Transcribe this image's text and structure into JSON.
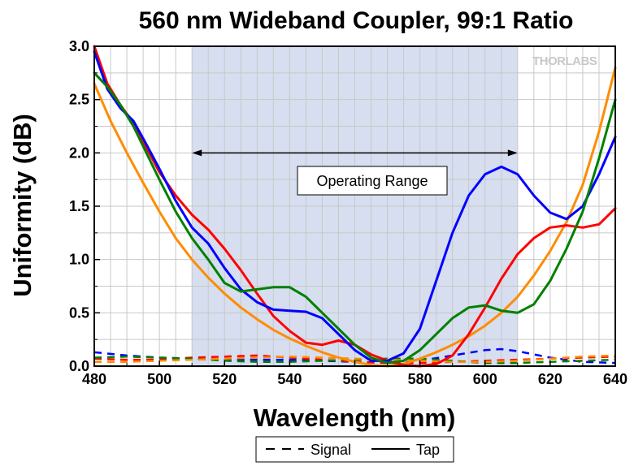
{
  "chart_data": {
    "type": "line",
    "title": "560 nm Wideband Coupler, 99:1 Ratio",
    "xlabel": "Wavelength (nm)",
    "ylabel": "Uniformity (dB)",
    "xlim": [
      480,
      640
    ],
    "ylim": [
      0,
      3.0
    ],
    "x_ticks": [
      "480",
      "500",
      "520",
      "540",
      "560",
      "580",
      "600",
      "620",
      "640"
    ],
    "y_ticks": [
      "0.0",
      "0.5",
      "1.0",
      "1.5",
      "2.0",
      "2.5",
      "3.0"
    ],
    "grid": true,
    "shaded_region": [
      510,
      610
    ],
    "range_arrow": {
      "x": [
        510,
        610
      ],
      "y": 2.0
    },
    "annotation": "Operating Range",
    "legend": {
      "placement": "bottom-center",
      "entries": [
        {
          "label": "Signal",
          "style": "dashed"
        },
        {
          "label": "Tap",
          "style": "solid"
        }
      ]
    },
    "logo": "THORLABS",
    "series": [
      {
        "style": "solid",
        "color": "#0000ff",
        "x": [
          480,
          484,
          488,
          492,
          496,
          500,
          505,
          510,
          515,
          520,
          525,
          530,
          535,
          540,
          545,
          550,
          555,
          560,
          565,
          570,
          575,
          580,
          585,
          590,
          595,
          600,
          605,
          610,
          615,
          620,
          625,
          630,
          635,
          640
        ],
        "y": [
          2.95,
          2.6,
          2.42,
          2.3,
          2.08,
          1.85,
          1.55,
          1.3,
          1.15,
          0.92,
          0.72,
          0.6,
          0.53,
          0.52,
          0.51,
          0.45,
          0.3,
          0.15,
          0.05,
          0.05,
          0.12,
          0.35,
          0.8,
          1.25,
          1.6,
          1.8,
          1.87,
          1.8,
          1.6,
          1.44,
          1.38,
          1.5,
          1.8,
          2.15
        ]
      },
      {
        "style": "solid",
        "color": "#ff0000",
        "x": [
          480,
          484,
          488,
          492,
          496,
          500,
          505,
          510,
          515,
          520,
          525,
          530,
          535,
          540,
          545,
          550,
          555,
          560,
          565,
          570,
          575,
          580,
          585,
          590,
          595,
          600,
          605,
          610,
          615,
          620,
          625,
          630,
          635,
          640
        ],
        "y": [
          3.0,
          2.65,
          2.45,
          2.28,
          2.05,
          1.82,
          1.6,
          1.42,
          1.28,
          1.1,
          0.9,
          0.68,
          0.47,
          0.33,
          0.22,
          0.2,
          0.24,
          0.2,
          0.11,
          0.05,
          0.01,
          0.0,
          0.02,
          0.1,
          0.3,
          0.55,
          0.82,
          1.05,
          1.2,
          1.3,
          1.32,
          1.3,
          1.33,
          1.48
        ]
      },
      {
        "style": "solid",
        "color": "#008000",
        "x": [
          480,
          484,
          488,
          492,
          496,
          500,
          505,
          510,
          515,
          520,
          525,
          530,
          535,
          540,
          545,
          550,
          555,
          560,
          565,
          570,
          575,
          580,
          585,
          590,
          595,
          600,
          605,
          610,
          615,
          620,
          625,
          630,
          635,
          640
        ],
        "y": [
          2.75,
          2.62,
          2.45,
          2.25,
          2.0,
          1.75,
          1.45,
          1.2,
          1.0,
          0.78,
          0.7,
          0.72,
          0.74,
          0.74,
          0.65,
          0.5,
          0.35,
          0.2,
          0.08,
          0.03,
          0.05,
          0.15,
          0.3,
          0.45,
          0.55,
          0.57,
          0.52,
          0.5,
          0.58,
          0.8,
          1.1,
          1.45,
          1.95,
          2.5
        ]
      },
      {
        "style": "solid",
        "color": "#ff8c00",
        "x": [
          480,
          485,
          490,
          495,
          500,
          505,
          510,
          515,
          520,
          525,
          530,
          535,
          540,
          545,
          550,
          555,
          560,
          565,
          570,
          575,
          580,
          585,
          590,
          595,
          600,
          605,
          610,
          615,
          620,
          625,
          630,
          635,
          640
        ],
        "y": [
          2.65,
          2.3,
          2.0,
          1.72,
          1.45,
          1.2,
          1.0,
          0.83,
          0.68,
          0.55,
          0.44,
          0.34,
          0.26,
          0.19,
          0.13,
          0.08,
          0.04,
          0.01,
          0.0,
          0.02,
          0.07,
          0.13,
          0.2,
          0.28,
          0.38,
          0.5,
          0.65,
          0.85,
          1.08,
          1.35,
          1.7,
          2.2,
          2.8
        ]
      },
      {
        "style": "dashed",
        "color": "#0000ff",
        "x": [
          480,
          490,
          500,
          510,
          520,
          530,
          540,
          550,
          560,
          570,
          580,
          590,
          600,
          605,
          610,
          620,
          630,
          640
        ],
        "y": [
          0.13,
          0.1,
          0.08,
          0.07,
          0.06,
          0.06,
          0.06,
          0.05,
          0.04,
          0.03,
          0.05,
          0.1,
          0.15,
          0.16,
          0.14,
          0.08,
          0.04,
          0.03
        ]
      },
      {
        "style": "dashed",
        "color": "#ff0000",
        "x": [
          480,
          490,
          500,
          510,
          520,
          530,
          540,
          550,
          560,
          570,
          580,
          590,
          600,
          610,
          620,
          630,
          640
        ],
        "y": [
          0.07,
          0.06,
          0.06,
          0.08,
          0.09,
          0.1,
          0.08,
          0.06,
          0.04,
          0.03,
          0.03,
          0.04,
          0.05,
          0.06,
          0.07,
          0.08,
          0.09
        ]
      },
      {
        "style": "dashed",
        "color": "#008000",
        "x": [
          480,
          490,
          500,
          510,
          520,
          530,
          540,
          550,
          560,
          570,
          580,
          590,
          600,
          610,
          620,
          630,
          640
        ],
        "y": [
          0.08,
          0.09,
          0.08,
          0.07,
          0.05,
          0.04,
          0.04,
          0.05,
          0.06,
          0.07,
          0.07,
          0.05,
          0.03,
          0.03,
          0.04,
          0.05,
          0.06
        ]
      },
      {
        "style": "dashed",
        "color": "#ff8c00",
        "x": [
          480,
          490,
          500,
          510,
          520,
          530,
          540,
          550,
          560,
          570,
          580,
          590,
          600,
          610,
          620,
          630,
          640
        ],
        "y": [
          0.04,
          0.04,
          0.05,
          0.06,
          0.07,
          0.08,
          0.09,
          0.08,
          0.07,
          0.06,
          0.05,
          0.04,
          0.04,
          0.05,
          0.07,
          0.09,
          0.1
        ]
      }
    ]
  }
}
